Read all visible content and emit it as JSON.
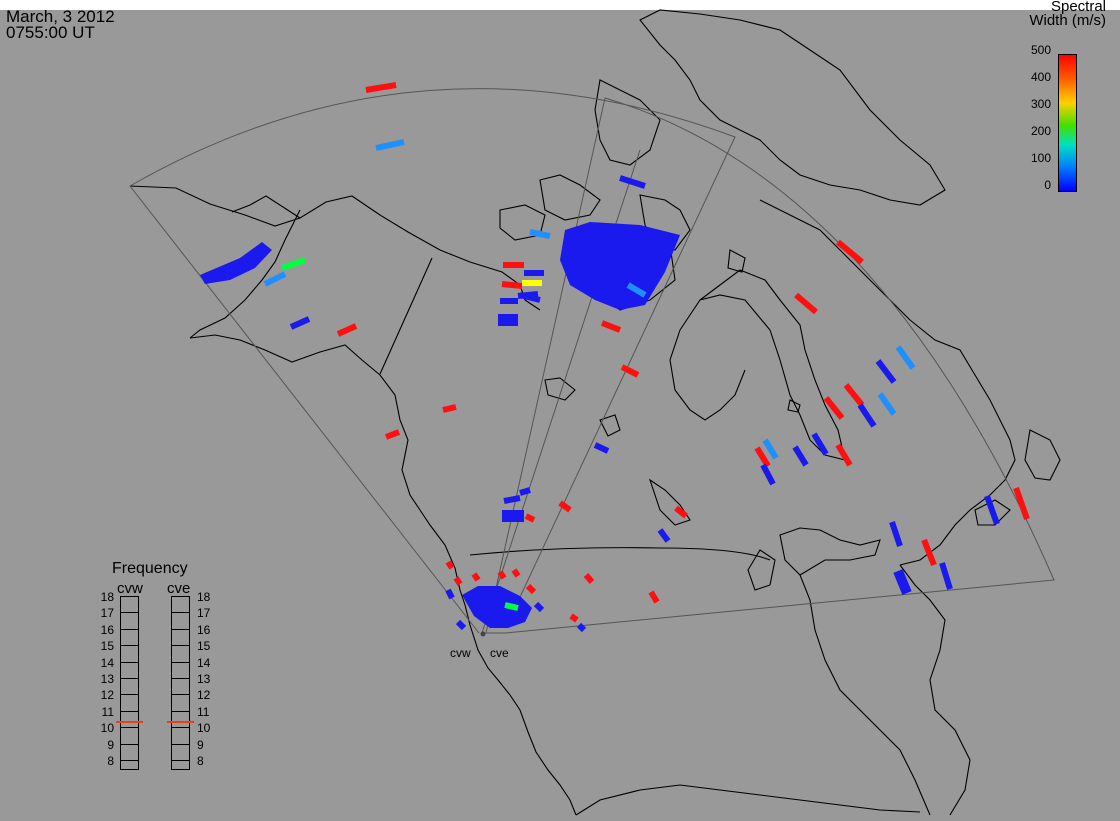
{
  "header": {
    "date": "March, 3 2012",
    "time": "0755:00 UT"
  },
  "colorbar": {
    "title_line1": "Spectral",
    "title_line2": "Width (m/s)",
    "ticks": [
      "500",
      "400",
      "300",
      "200",
      "100",
      "0"
    ],
    "range": [
      0,
      500
    ],
    "colors": [
      "#0000ff",
      "#00a0ff",
      "#00ff40",
      "#ffff00",
      "#ff8000",
      "#ff0000"
    ]
  },
  "frequency_panel": {
    "title": "Frequency",
    "columns": [
      {
        "name": "cvw",
        "selected_mhz": 10.6
      },
      {
        "name": "cve",
        "selected_mhz": 10.6
      }
    ],
    "labels": [
      "18",
      "17",
      "16",
      "15",
      "14",
      "13",
      "12",
      "11",
      "10",
      "9",
      "8"
    ],
    "marker_color": "#e8401c"
  },
  "radars": [
    "cvw",
    "cve"
  ],
  "colors": {
    "background": "#999999",
    "coastline": "#000000",
    "fov_outline": "#555555",
    "low_width": "#1a1aee",
    "mid_width": "#1e90ff",
    "high_width": "#ff1010"
  }
}
